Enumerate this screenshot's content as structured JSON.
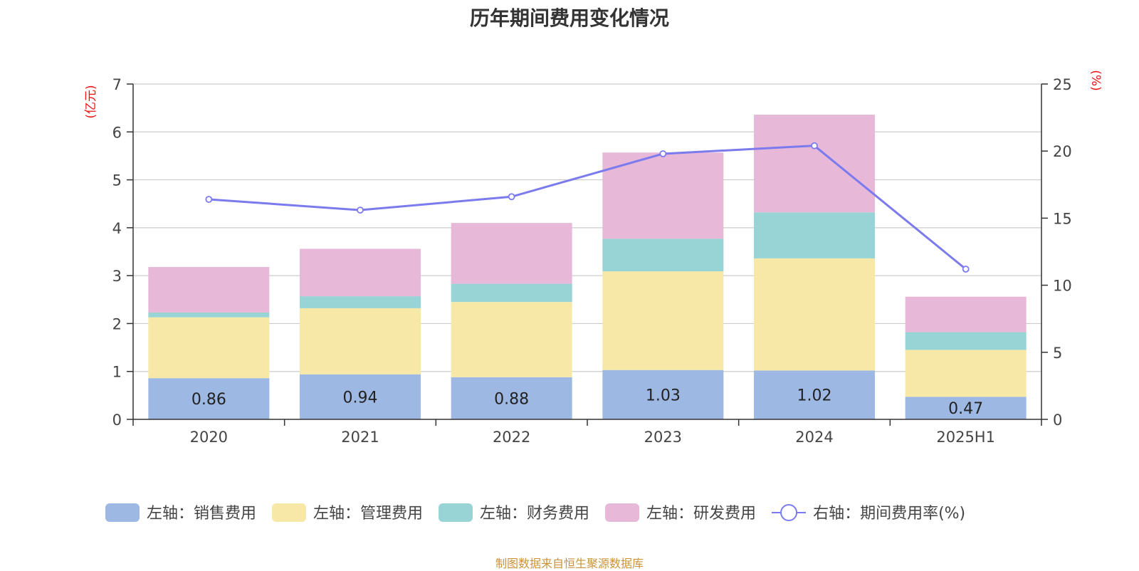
{
  "chart_data": {
    "type": "bar",
    "title": "历年期间费用变化情况",
    "categories": [
      "2020",
      "2021",
      "2022",
      "2023",
      "2024",
      "2025H1"
    ],
    "y_left": {
      "unit": "(亿元)",
      "range": [
        0,
        7
      ],
      "ticks": [
        "0",
        "1",
        "2",
        "3",
        "4",
        "5",
        "6",
        "7"
      ]
    },
    "y_right": {
      "unit": "(%)",
      "range": [
        0,
        25
      ],
      "ticks": [
        "0",
        "5",
        "10",
        "15",
        "20",
        "25"
      ]
    },
    "stacked": true,
    "grid": true,
    "legend_position": "bottom",
    "series": [
      {
        "name": "左轴：销售费用",
        "axis": "left",
        "kind": "bar",
        "color": "#9db8e2",
        "values": [
          0.86,
          0.94,
          0.88,
          1.03,
          1.02,
          0.47
        ],
        "labels": [
          "0.86",
          "0.94",
          "0.88",
          "1.03",
          "1.02",
          "0.47"
        ]
      },
      {
        "name": "左轴：管理费用",
        "axis": "left",
        "kind": "bar",
        "color": "#f8e8a8",
        "values": [
          1.27,
          1.38,
          1.57,
          2.06,
          2.34,
          0.98
        ]
      },
      {
        "name": "左轴：财务费用",
        "axis": "left",
        "kind": "bar",
        "color": "#98d4d6",
        "values": [
          0.1,
          0.25,
          0.38,
          0.68,
          0.96,
          0.37
        ]
      },
      {
        "name": "左轴：研发费用",
        "axis": "left",
        "kind": "bar",
        "color": "#e8b8d8",
        "values": [
          0.95,
          0.99,
          1.27,
          1.8,
          2.04,
          0.74
        ]
      },
      {
        "name": "右轴：期间费用率(%)",
        "axis": "right",
        "kind": "line",
        "color": "#7b7bee",
        "values": [
          16.4,
          15.6,
          16.6,
          19.8,
          20.4,
          11.2
        ]
      }
    ]
  },
  "source_note": "制图数据来自恒生聚源数据库"
}
